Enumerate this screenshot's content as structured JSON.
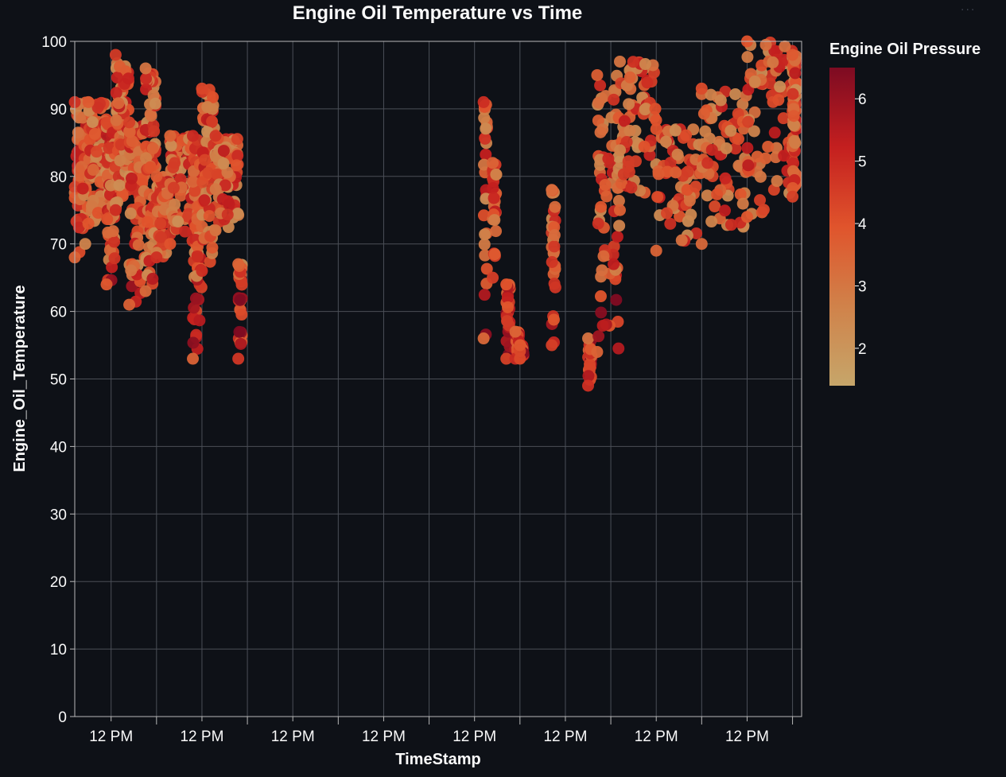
{
  "menu": {
    "icon": "ellipsis-icon",
    "label": "···"
  },
  "chart_data": {
    "type": "scatter",
    "title": "Engine Oil Temperature vs Time",
    "xlabel": "TimeStamp",
    "ylabel": "Engine_Oil_Temperature",
    "ylim": [
      0,
      100
    ],
    "yticks": [
      0,
      10,
      20,
      30,
      40,
      50,
      60,
      70,
      80,
      90,
      100
    ],
    "x_tick_labels": [
      "12 PM",
      "12 PM",
      "12 PM",
      "12 PM",
      "12 PM",
      "12 PM",
      "12 PM",
      "12 PM"
    ],
    "x_unit": "days, day 0 noon = first 12 PM tick",
    "xlim": [
      -0.4,
      7.6
    ],
    "grid": true,
    "color_scale": {
      "title": "Engine Oil Pressure",
      "domain": [
        1.4,
        6.5
      ],
      "ticks": [
        2,
        3,
        4,
        5,
        6
      ],
      "colors": [
        "#c6a66a",
        "#d0824a",
        "#e0542c",
        "#c41f1f",
        "#7d0b22"
      ]
    },
    "points_overview": [
      {
        "x": -0.4,
        "y_min": 68,
        "y_max": 91
      },
      {
        "x": -0.25,
        "y_min": 73,
        "y_max": 91
      },
      {
        "x": -0.05,
        "y_min": 64,
        "y_max": 88
      },
      {
        "x": 0.05,
        "y_min": 75,
        "y_max": 98
      },
      {
        "x": 0.2,
        "y_min": 61,
        "y_max": 88
      },
      {
        "x": 0.38,
        "y_min": 63,
        "y_max": 96
      },
      {
        "x": 0.5,
        "y_min": 68,
        "y_max": 80
      },
      {
        "x": 0.65,
        "y_min": 70,
        "y_max": 86
      },
      {
        "x": 0.9,
        "y_min": 53,
        "y_max": 86
      },
      {
        "x": 1.0,
        "y_min": 66,
        "y_max": 93
      },
      {
        "x": 1.15,
        "y_min": 72,
        "y_max": 86
      },
      {
        "x": 1.4,
        "y_min": 53,
        "y_max": 67
      },
      {
        "x": 4.1,
        "y_min": 56,
        "y_max": 91
      },
      {
        "x": 4.2,
        "y_min": 65,
        "y_max": 82
      },
      {
        "x": 4.35,
        "y_min": 53,
        "y_max": 64
      },
      {
        "x": 4.45,
        "y_min": 53,
        "y_max": 57
      },
      {
        "x": 4.5,
        "y_min": 53,
        "y_max": 55
      },
      {
        "x": 4.85,
        "y_min": 55,
        "y_max": 78
      },
      {
        "x": 5.25,
        "y_min": 49,
        "y_max": 56
      },
      {
        "x": 5.35,
        "y_min": 54,
        "y_max": 95
      },
      {
        "x": 5.6,
        "y_min": 75,
        "y_max": 97
      },
      {
        "x": 6.0,
        "y_min": 69,
        "y_max": 87
      },
      {
        "x": 6.5,
        "y_min": 70,
        "y_max": 93
      },
      {
        "x": 7.0,
        "y_min": 74,
        "y_max": 100
      },
      {
        "x": 7.5,
        "y_min": 77,
        "y_max": 98
      }
    ]
  }
}
